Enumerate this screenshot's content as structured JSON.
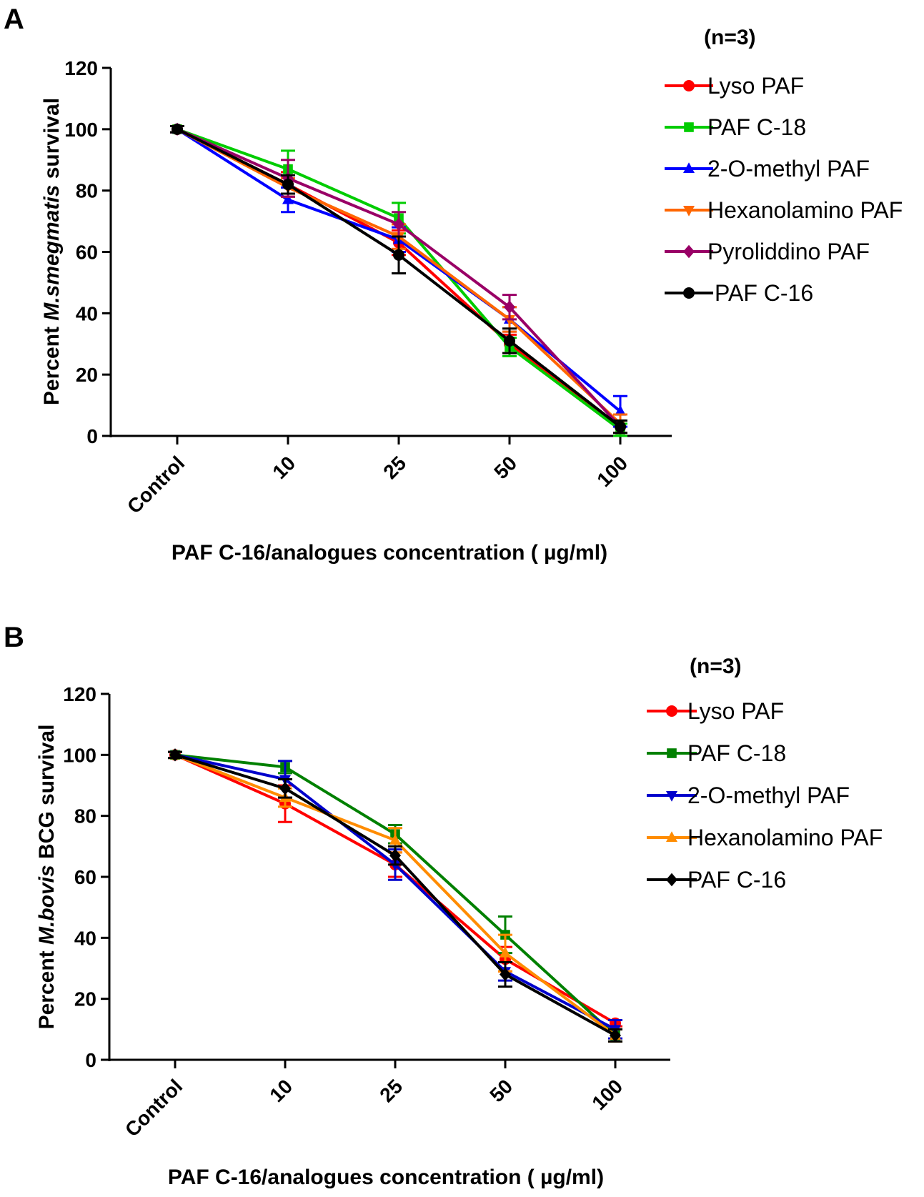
{
  "chart_data": [
    {
      "panel": "A",
      "type": "line",
      "categories": [
        "Control",
        "10",
        "25",
        "50",
        "100"
      ],
      "xlabel": "PAF C-16/analogues concentration ( µg/ml)",
      "ylabel_prefix": "Percent ",
      "ylabel_italic": "M.smegmatis",
      "ylabel_suffix": " survival",
      "ylim": [
        0,
        120
      ],
      "yticks": [
        "0",
        "20",
        "40",
        "60",
        "80",
        "100",
        "120"
      ],
      "legend_title": "(n=3)",
      "legend_position": "right",
      "series": [
        {
          "name": "Lyso PAF",
          "color": "#ff0000",
          "marker": "circle",
          "values": [
            100,
            82,
            63,
            30,
            3
          ],
          "errors": [
            1,
            4,
            4,
            3,
            2
          ]
        },
        {
          "name": "PAF C-18",
          "color": "#00cc00",
          "marker": "square",
          "values": [
            100,
            87,
            71,
            29,
            2
          ],
          "errors": [
            1,
            6,
            5,
            3,
            2
          ]
        },
        {
          "name": "2-O-methyl PAF",
          "color": "#0000ff",
          "marker": "triangle-up",
          "values": [
            100,
            77,
            64,
            38,
            8
          ],
          "errors": [
            1,
            4,
            4,
            4,
            5
          ]
        },
        {
          "name": "Hexanolamino PAF",
          "color": "#ff6600",
          "marker": "triangle-down",
          "values": [
            100,
            81,
            65,
            38,
            4
          ],
          "errors": [
            1,
            3,
            4,
            4,
            3
          ]
        },
        {
          "name": "Pyroliddino PAF",
          "color": "#990066",
          "marker": "diamond",
          "values": [
            100,
            84,
            69,
            42,
            3
          ],
          "errors": [
            1,
            6,
            4,
            4,
            2
          ]
        },
        {
          "name": "PAF C-16",
          "color": "#000000",
          "marker": "circle",
          "values": [
            100,
            82,
            59,
            31,
            3
          ],
          "errors": [
            1,
            3,
            6,
            4,
            2
          ]
        }
      ]
    },
    {
      "panel": "B",
      "type": "line",
      "categories": [
        "Control",
        "10",
        "25",
        "50",
        "100"
      ],
      "xlabel": "PAF C-16/analogues concentration ( µg/ml)",
      "ylabel_prefix": "Percent ",
      "ylabel_italic": "M.bovis",
      "ylabel_suffix": " BCG survival",
      "ylim": [
        0,
        120
      ],
      "yticks": [
        "0",
        "20",
        "40",
        "60",
        "80",
        "100",
        "120"
      ],
      "legend_title": "(n=3)",
      "legend_position": "right",
      "series": [
        {
          "name": "Lyso PAF",
          "color": "#ff0000",
          "marker": "circle",
          "values": [
            100,
            84,
            64,
            33,
            12
          ],
          "errors": [
            1,
            6,
            4,
            4,
            1
          ]
        },
        {
          "name": "PAF C-18",
          "color": "#008000",
          "marker": "square",
          "values": [
            100,
            96,
            74,
            41,
            8
          ],
          "errors": [
            1,
            2,
            3,
            6,
            2
          ]
        },
        {
          "name": "2-O-methyl PAF",
          "color": "#0000cc",
          "marker": "triangle-down",
          "values": [
            100,
            92,
            64,
            29,
            10
          ],
          "errors": [
            1,
            6,
            5,
            3,
            3
          ]
        },
        {
          "name": "Hexanolamino PAF",
          "color": "#ff8c00",
          "marker": "triangle-up",
          "values": [
            100,
            86,
            72,
            35,
            8
          ],
          "errors": [
            1,
            3,
            4,
            6,
            2
          ]
        },
        {
          "name": "PAF C-16",
          "color": "#000000",
          "marker": "diamond",
          "values": [
            100,
            89,
            67,
            28,
            8
          ],
          "errors": [
            1,
            3,
            3,
            4,
            2
          ]
        }
      ]
    }
  ]
}
